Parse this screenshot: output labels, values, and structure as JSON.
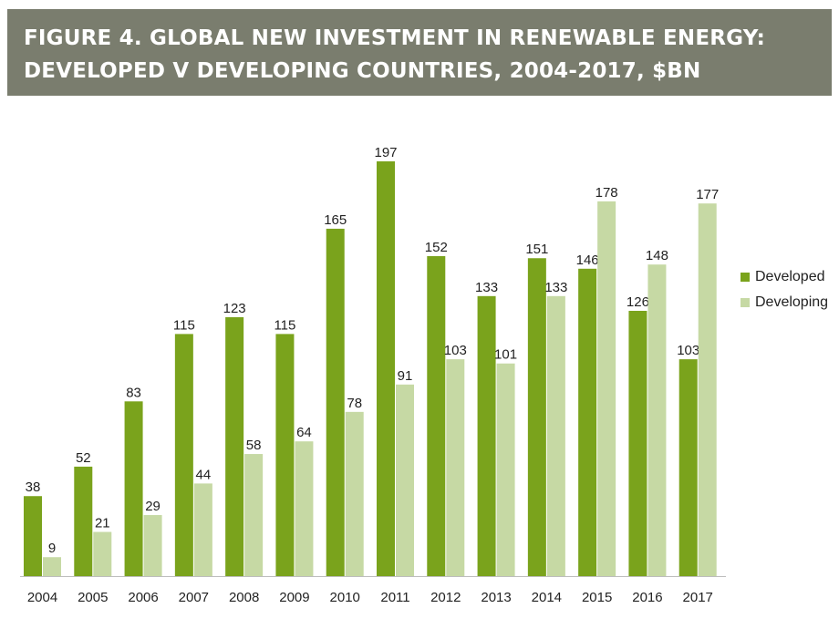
{
  "header": {
    "title_line1": "FIGURE 4. GLOBAL NEW INVESTMENT IN RENEWABLE ENERGY:",
    "title_line2": "DEVELOPED V DEVELOPING COUNTRIES, 2004-2017, $BN"
  },
  "chart_data": {
    "type": "bar",
    "title": "FIGURE 4. GLOBAL NEW INVESTMENT IN RENEWABLE ENERGY: DEVELOPED V DEVELOPING COUNTRIES, 2004-2017, $BN",
    "categories": [
      "2004",
      "2005",
      "2006",
      "2007",
      "2008",
      "2009",
      "2010",
      "2011",
      "2012",
      "2013",
      "2014",
      "2015",
      "2016",
      "2017"
    ],
    "series": [
      {
        "name": "Developed",
        "color": "#7aa31c",
        "values": [
          38,
          52,
          83,
          115,
          123,
          115,
          165,
          197,
          152,
          133,
          151,
          146,
          126,
          103
        ]
      },
      {
        "name": "Developing",
        "color": "#c6d9a4",
        "values": [
          9,
          21,
          29,
          44,
          58,
          64,
          78,
          91,
          103,
          101,
          133,
          178,
          148,
          177
        ]
      }
    ],
    "ylim": [
      0,
      200
    ],
    "grid": false,
    "legend_position": "right"
  }
}
